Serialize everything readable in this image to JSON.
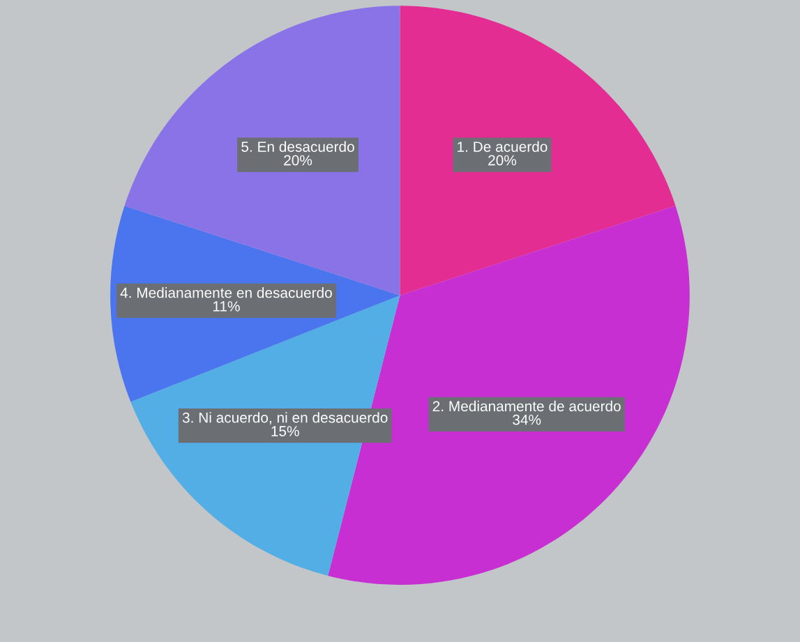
{
  "chart_data": {
    "type": "pie",
    "categories": [
      "1. De acuerdo",
      "2. Medianamente de acuerdo",
      "3. Ni acuerdo, ni en desacuerdo",
      "4. Medianamente en desacuerdo",
      "5. En desacuerdo"
    ],
    "values": [
      20,
      34,
      15,
      11,
      20
    ],
    "colors": [
      "#e42d93",
      "#c82fd2",
      "#52aee4",
      "#4a75ee",
      "#8a73e6"
    ],
    "value_labels": [
      "20%",
      "34%",
      "15%",
      "11%",
      "20%"
    ]
  }
}
